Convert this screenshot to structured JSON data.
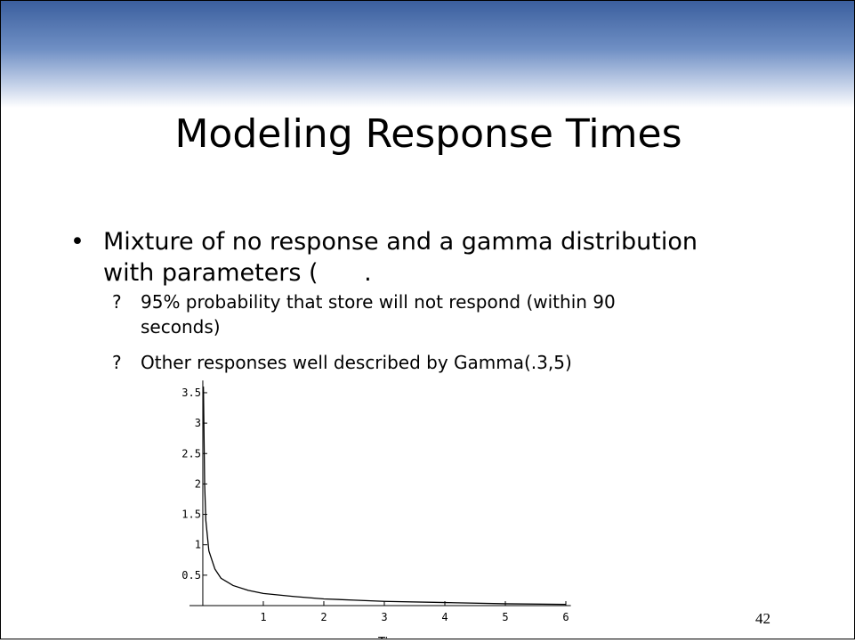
{
  "slide": {
    "title": "Modeling Response Times",
    "bullet": "Mixture of no response and a gamma distribution",
    "bullet_cont": "with parameters (      .",
    "sub_bullets": [
      {
        "marker": "?",
        "text": "95% probability that store will not respond (within 90",
        "cont": "seconds)"
      },
      {
        "marker": "?",
        "text": "Other responses well described by Gamma(.3,5)"
      }
    ],
    "page_number": "42"
  },
  "chart_data": {
    "type": "line",
    "x_label": "Time",
    "x": [
      0.01,
      0.03,
      0.05,
      0.1,
      0.2,
      0.3,
      0.5,
      0.75,
      1,
      1.5,
      2,
      2.5,
      3,
      4,
      5,
      6
    ],
    "series": [
      {
        "color": "#000000",
        "values": [
          3.6,
          2.0,
          1.4,
          0.9,
          0.6,
          0.45,
          0.33,
          0.25,
          0.2,
          0.15,
          0.11,
          0.09,
          0.07,
          0.05,
          0.03,
          0.02
        ]
      }
    ],
    "xlim": [
      -0.22,
      6.2
    ],
    "xticks": [
      1,
      2,
      3,
      4,
      5,
      6
    ],
    "ylim": [
      0,
      3.7
    ],
    "yticks": [
      0.5,
      1,
      1.5,
      2,
      2.5,
      3,
      3.5
    ]
  }
}
